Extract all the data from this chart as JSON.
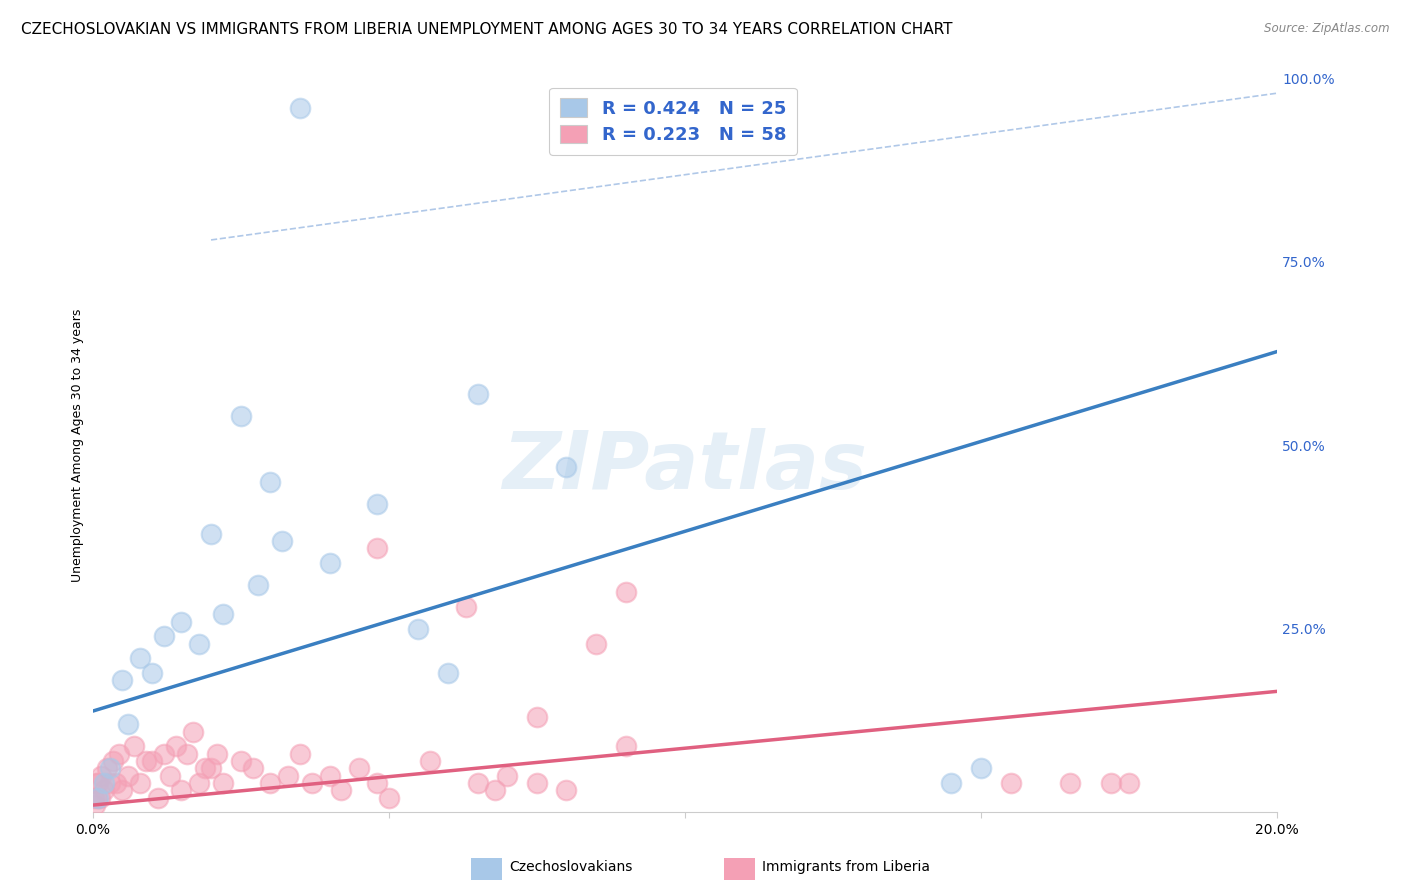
{
  "title": "CZECHOSLOVAKIAN VS IMMIGRANTS FROM LIBERIA UNEMPLOYMENT AMONG AGES 30 TO 34 YEARS CORRELATION CHART",
  "source": "Source: ZipAtlas.com",
  "ylabel": "Unemployment Among Ages 30 to 34 years",
  "xlim": [
    0.0,
    0.2
  ],
  "ylim": [
    0.0,
    1.0
  ],
  "xtick_positions": [
    0.0,
    0.05,
    0.1,
    0.15,
    0.2
  ],
  "xticklabels": [
    "0.0%",
    "",
    "",
    "",
    "20.0%"
  ],
  "ytick_positions": [
    0.0,
    0.25,
    0.5,
    0.75,
    1.0
  ],
  "yticklabels_right": [
    "",
    "25.0%",
    "50.0%",
    "75.0%",
    "100.0%"
  ],
  "background_color": "#ffffff",
  "grid_color": "#cccccc",
  "blue_color": "#a8c8e8",
  "pink_color": "#f4a0b5",
  "blue_line_color": "#3a7fc1",
  "pink_line_color": "#e06080",
  "dash_line_color": "#b0c8e8",
  "legend_text_color": "#3366cc",
  "right_tick_color": "#3366cc",
  "title_fontsize": 11,
  "axis_label_fontsize": 9,
  "tick_fontsize": 10,
  "watermark_text": "ZIPatlas",
  "blue_trend": [
    0.0,
    0.138,
    0.2,
    0.628
  ],
  "pink_trend": [
    0.0,
    0.01,
    0.2,
    0.165
  ],
  "dash_ref": [
    0.02,
    0.78,
    0.2,
    0.98
  ],
  "blue_x": [
    0.035,
    0.001,
    0.002,
    0.003,
    0.005,
    0.006,
    0.008,
    0.01,
    0.012,
    0.015,
    0.018,
    0.02,
    0.022,
    0.025,
    0.028,
    0.03,
    0.032,
    0.04,
    0.048,
    0.055,
    0.06,
    0.065,
    0.08,
    0.145,
    0.15
  ],
  "blue_y": [
    0.96,
    0.02,
    0.04,
    0.06,
    0.18,
    0.12,
    0.21,
    0.19,
    0.24,
    0.26,
    0.23,
    0.38,
    0.27,
    0.54,
    0.31,
    0.45,
    0.37,
    0.34,
    0.42,
    0.25,
    0.19,
    0.57,
    0.47,
    0.04,
    0.06
  ],
  "pink_x": [
    0.0002,
    0.0004,
    0.0006,
    0.0008,
    0.001,
    0.0012,
    0.0015,
    0.002,
    0.0025,
    0.003,
    0.0035,
    0.004,
    0.0045,
    0.005,
    0.006,
    0.007,
    0.008,
    0.009,
    0.01,
    0.011,
    0.012,
    0.013,
    0.014,
    0.015,
    0.016,
    0.017,
    0.018,
    0.019,
    0.02,
    0.021,
    0.022,
    0.025,
    0.027,
    0.03,
    0.033,
    0.035,
    0.037,
    0.04,
    0.042,
    0.045,
    0.048,
    0.05,
    0.057,
    0.065,
    0.068,
    0.07,
    0.075,
    0.08,
    0.085,
    0.09,
    0.048,
    0.063,
    0.075,
    0.09,
    0.155,
    0.165,
    0.172,
    0.175
  ],
  "pink_y": [
    0.02,
    0.01,
    0.04,
    0.02,
    0.04,
    0.02,
    0.05,
    0.03,
    0.06,
    0.04,
    0.07,
    0.04,
    0.08,
    0.03,
    0.05,
    0.09,
    0.04,
    0.07,
    0.07,
    0.02,
    0.08,
    0.05,
    0.09,
    0.03,
    0.08,
    0.11,
    0.04,
    0.06,
    0.06,
    0.08,
    0.04,
    0.07,
    0.06,
    0.04,
    0.05,
    0.08,
    0.04,
    0.05,
    0.03,
    0.06,
    0.04,
    0.02,
    0.07,
    0.04,
    0.03,
    0.05,
    0.04,
    0.03,
    0.23,
    0.3,
    0.36,
    0.28,
    0.13,
    0.09,
    0.04,
    0.04,
    0.04,
    0.04
  ],
  "legend_R1": "R = 0.424",
  "legend_N1": "N = 25",
  "legend_R2": "R = 0.223",
  "legend_N2": "N = 58"
}
